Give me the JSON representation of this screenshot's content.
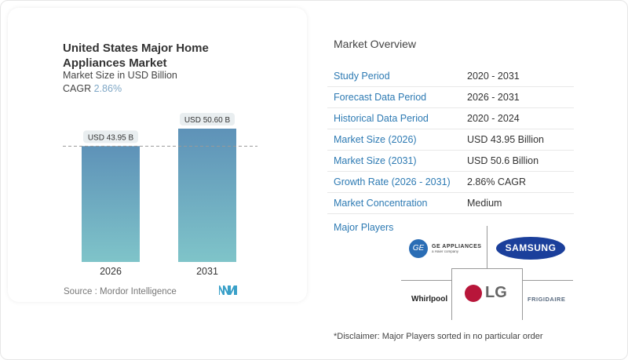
{
  "card": {
    "title": "United States Major Home Appliances Market",
    "subtitle": "Market Size in USD Billion",
    "cagr_label": "CAGR",
    "cagr_value": "2.86%",
    "source": "Source :  Mordor Intelligence"
  },
  "chart_data": {
    "type": "bar",
    "categories": [
      "2026",
      "2031"
    ],
    "values": [
      43.95,
      50.6
    ],
    "data_labels": [
      "USD 43.95 B",
      "USD 50.60 B"
    ],
    "title": "United States Major Home Appliances Market",
    "ylabel": "Market Size in USD Billion",
    "ylim": [
      0,
      50.6
    ],
    "grid": false,
    "reference_line": 43.95,
    "bar_color_top": "#5e92b8",
    "bar_color_bottom": "#7fc4c9"
  },
  "overview": {
    "title": "Market Overview",
    "rows": [
      {
        "label": "Study Period",
        "value": "2020 - 2031"
      },
      {
        "label": "Forecast Data Period",
        "value": "2026 - 2031"
      },
      {
        "label": "Historical Data Period",
        "value": "2020 - 2024"
      },
      {
        "label": "Market Size (2026)",
        "value": "USD 43.95 Billion"
      },
      {
        "label": "Market Size (2031)",
        "value": "USD 50.6 Billion"
      },
      {
        "label": "Growth Rate (2026 - 2031)",
        "value": "2.86% CAGR"
      },
      {
        "label": "Market Concentration",
        "value": "Medium"
      }
    ]
  },
  "players": {
    "title": "Major Players",
    "logos": [
      "GE APPLIANCES",
      "a Haier company",
      "SAMSUNG",
      "LG",
      "Whirlpool",
      "FRIGIDAIRE"
    ]
  },
  "disclaimer": "*Disclaimer: Major Players sorted in no particular order"
}
